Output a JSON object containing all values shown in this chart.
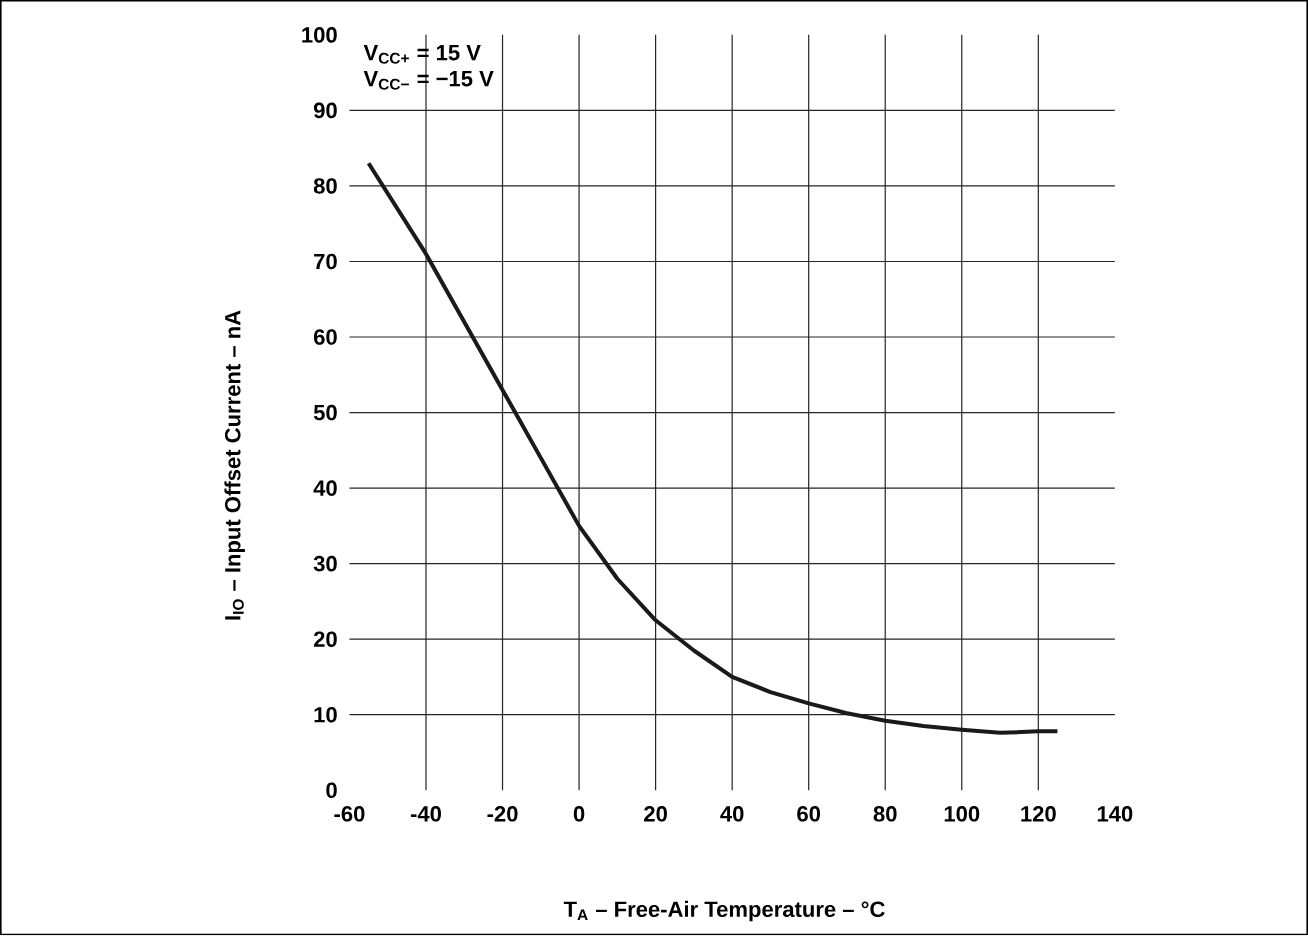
{
  "chart_data": {
    "type": "line",
    "xlabel": "T$_{A}$ – Free-Air Temperature – °C",
    "ylabel": "I$_{IO}$ – Input Offset Current – nA",
    "annotations": [
      "V$_{CC+}$ = 15 V",
      "V$_{CC−}$ = −15 V"
    ],
    "x": [
      -55,
      -40,
      -30,
      -20,
      -10,
      0,
      10,
      20,
      30,
      40,
      50,
      60,
      70,
      80,
      90,
      100,
      110,
      120,
      125
    ],
    "series": [
      {
        "color": "#1a1a1a",
        "values": [
          83,
          71,
          62,
          53,
          44,
          35,
          28,
          22.5,
          18.5,
          15,
          13,
          11.5,
          10.2,
          9.2,
          8.5,
          8,
          7.6,
          7.8,
          7.8
        ]
      }
    ],
    "xlim": [
      -60,
      140
    ],
    "ylim": [
      0,
      100
    ],
    "xticks": [
      -60,
      -40,
      -20,
      0,
      20,
      40,
      60,
      80,
      100,
      120,
      140
    ],
    "yticks": [
      0,
      10,
      20,
      30,
      40,
      50,
      60,
      70,
      80,
      90,
      100
    ],
    "grid": true,
    "line_style": "solid",
    "marker": "none"
  }
}
